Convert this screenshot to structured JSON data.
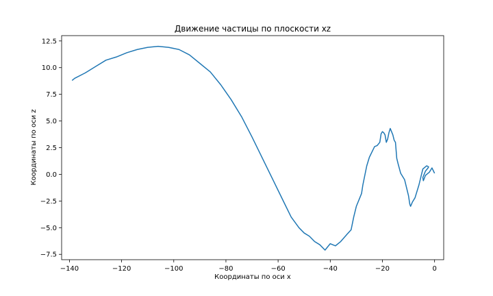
{
  "chart_data": {
    "type": "line",
    "title": "Движение частицы по плоскости xz",
    "xlabel": "Координаты по оси x",
    "ylabel": "Координаты по оси z",
    "xlim": [
      -143,
      3.5
    ],
    "ylim": [
      -8.0,
      13.0
    ],
    "xticks": [
      -140,
      -120,
      -100,
      -80,
      -60,
      -40,
      -20,
      0
    ],
    "xtick_labels": [
      "−140",
      "−120",
      "−100",
      "−80",
      "−60",
      "−40",
      "−20",
      "0"
    ],
    "yticks": [
      -7.5,
      -5.0,
      -2.5,
      0.0,
      2.5,
      5.0,
      7.5,
      10.0,
      12.5
    ],
    "ytick_labels": [
      "−7.5",
      "−5.0",
      "−2.5",
      "0.0",
      "2.5",
      "5.0",
      "7.5",
      "10.0",
      "12.5"
    ],
    "grid": false,
    "line_color": "#1f77b4",
    "series": [
      {
        "x": [
          0.0,
          -1.0,
          -2.0,
          -3.5,
          -4.3,
          -4.5,
          -3.5,
          -2.5,
          -2.3,
          -3.0,
          -4.5,
          -6.0,
          -7.5,
          -8.5,
          -9.2,
          -9.5,
          -10.0,
          -11.5,
          -12.0,
          -13.0,
          -14.0,
          -14.5,
          -15.0,
          -15.5,
          -16.0,
          -17.0,
          -17.5,
          -18.0,
          -18.5,
          -19.0,
          -19.5,
          -20.0,
          -20.5,
          -21.0,
          -22.0,
          -23.0,
          -25.0,
          -26.0,
          -27.5,
          -28.0,
          -30.0,
          -31.0,
          -32.0,
          -33.5,
          -36.0,
          -38.0,
          -40.0,
          -42.0,
          -44.0,
          -46.0,
          -48.0,
          -50.0,
          -52.0,
          -55.0,
          -58.0,
          -62.0,
          -66.0,
          -70.0,
          -74.0,
          -78.0,
          -82.0,
          -86.0,
          -90.0,
          -94.0,
          -98.0,
          -102.0,
          -106.0,
          -110.0,
          -114.0,
          -118.0,
          -122.0,
          -126.0,
          -130.0,
          -134.0,
          -138.0,
          -139.0
        ],
        "y": [
          0.1,
          0.6,
          0.2,
          -0.1,
          -0.6,
          -0.3,
          0.3,
          0.6,
          0.7,
          0.8,
          0.5,
          -1.0,
          -2.2,
          -2.6,
          -3.0,
          -2.8,
          -2.0,
          -0.5,
          -0.3,
          0.1,
          1.0,
          1.5,
          3.0,
          3.2,
          3.7,
          4.3,
          3.9,
          3.3,
          3.0,
          3.7,
          3.9,
          4.0,
          3.8,
          3.0,
          2.7,
          2.6,
          1.6,
          0.8,
          -1.0,
          -1.8,
          -3.0,
          -4.0,
          -5.2,
          -5.6,
          -6.3,
          -6.7,
          -6.5,
          -7.1,
          -6.6,
          -6.3,
          -5.8,
          -5.5,
          -5.0,
          -4.0,
          -2.5,
          -0.5,
          1.5,
          3.5,
          5.4,
          7.0,
          8.4,
          9.6,
          10.4,
          11.2,
          11.7,
          11.9,
          12.0,
          11.9,
          11.7,
          11.4,
          11.0,
          10.7,
          10.1,
          9.5,
          9.0,
          8.8
        ]
      }
    ]
  }
}
